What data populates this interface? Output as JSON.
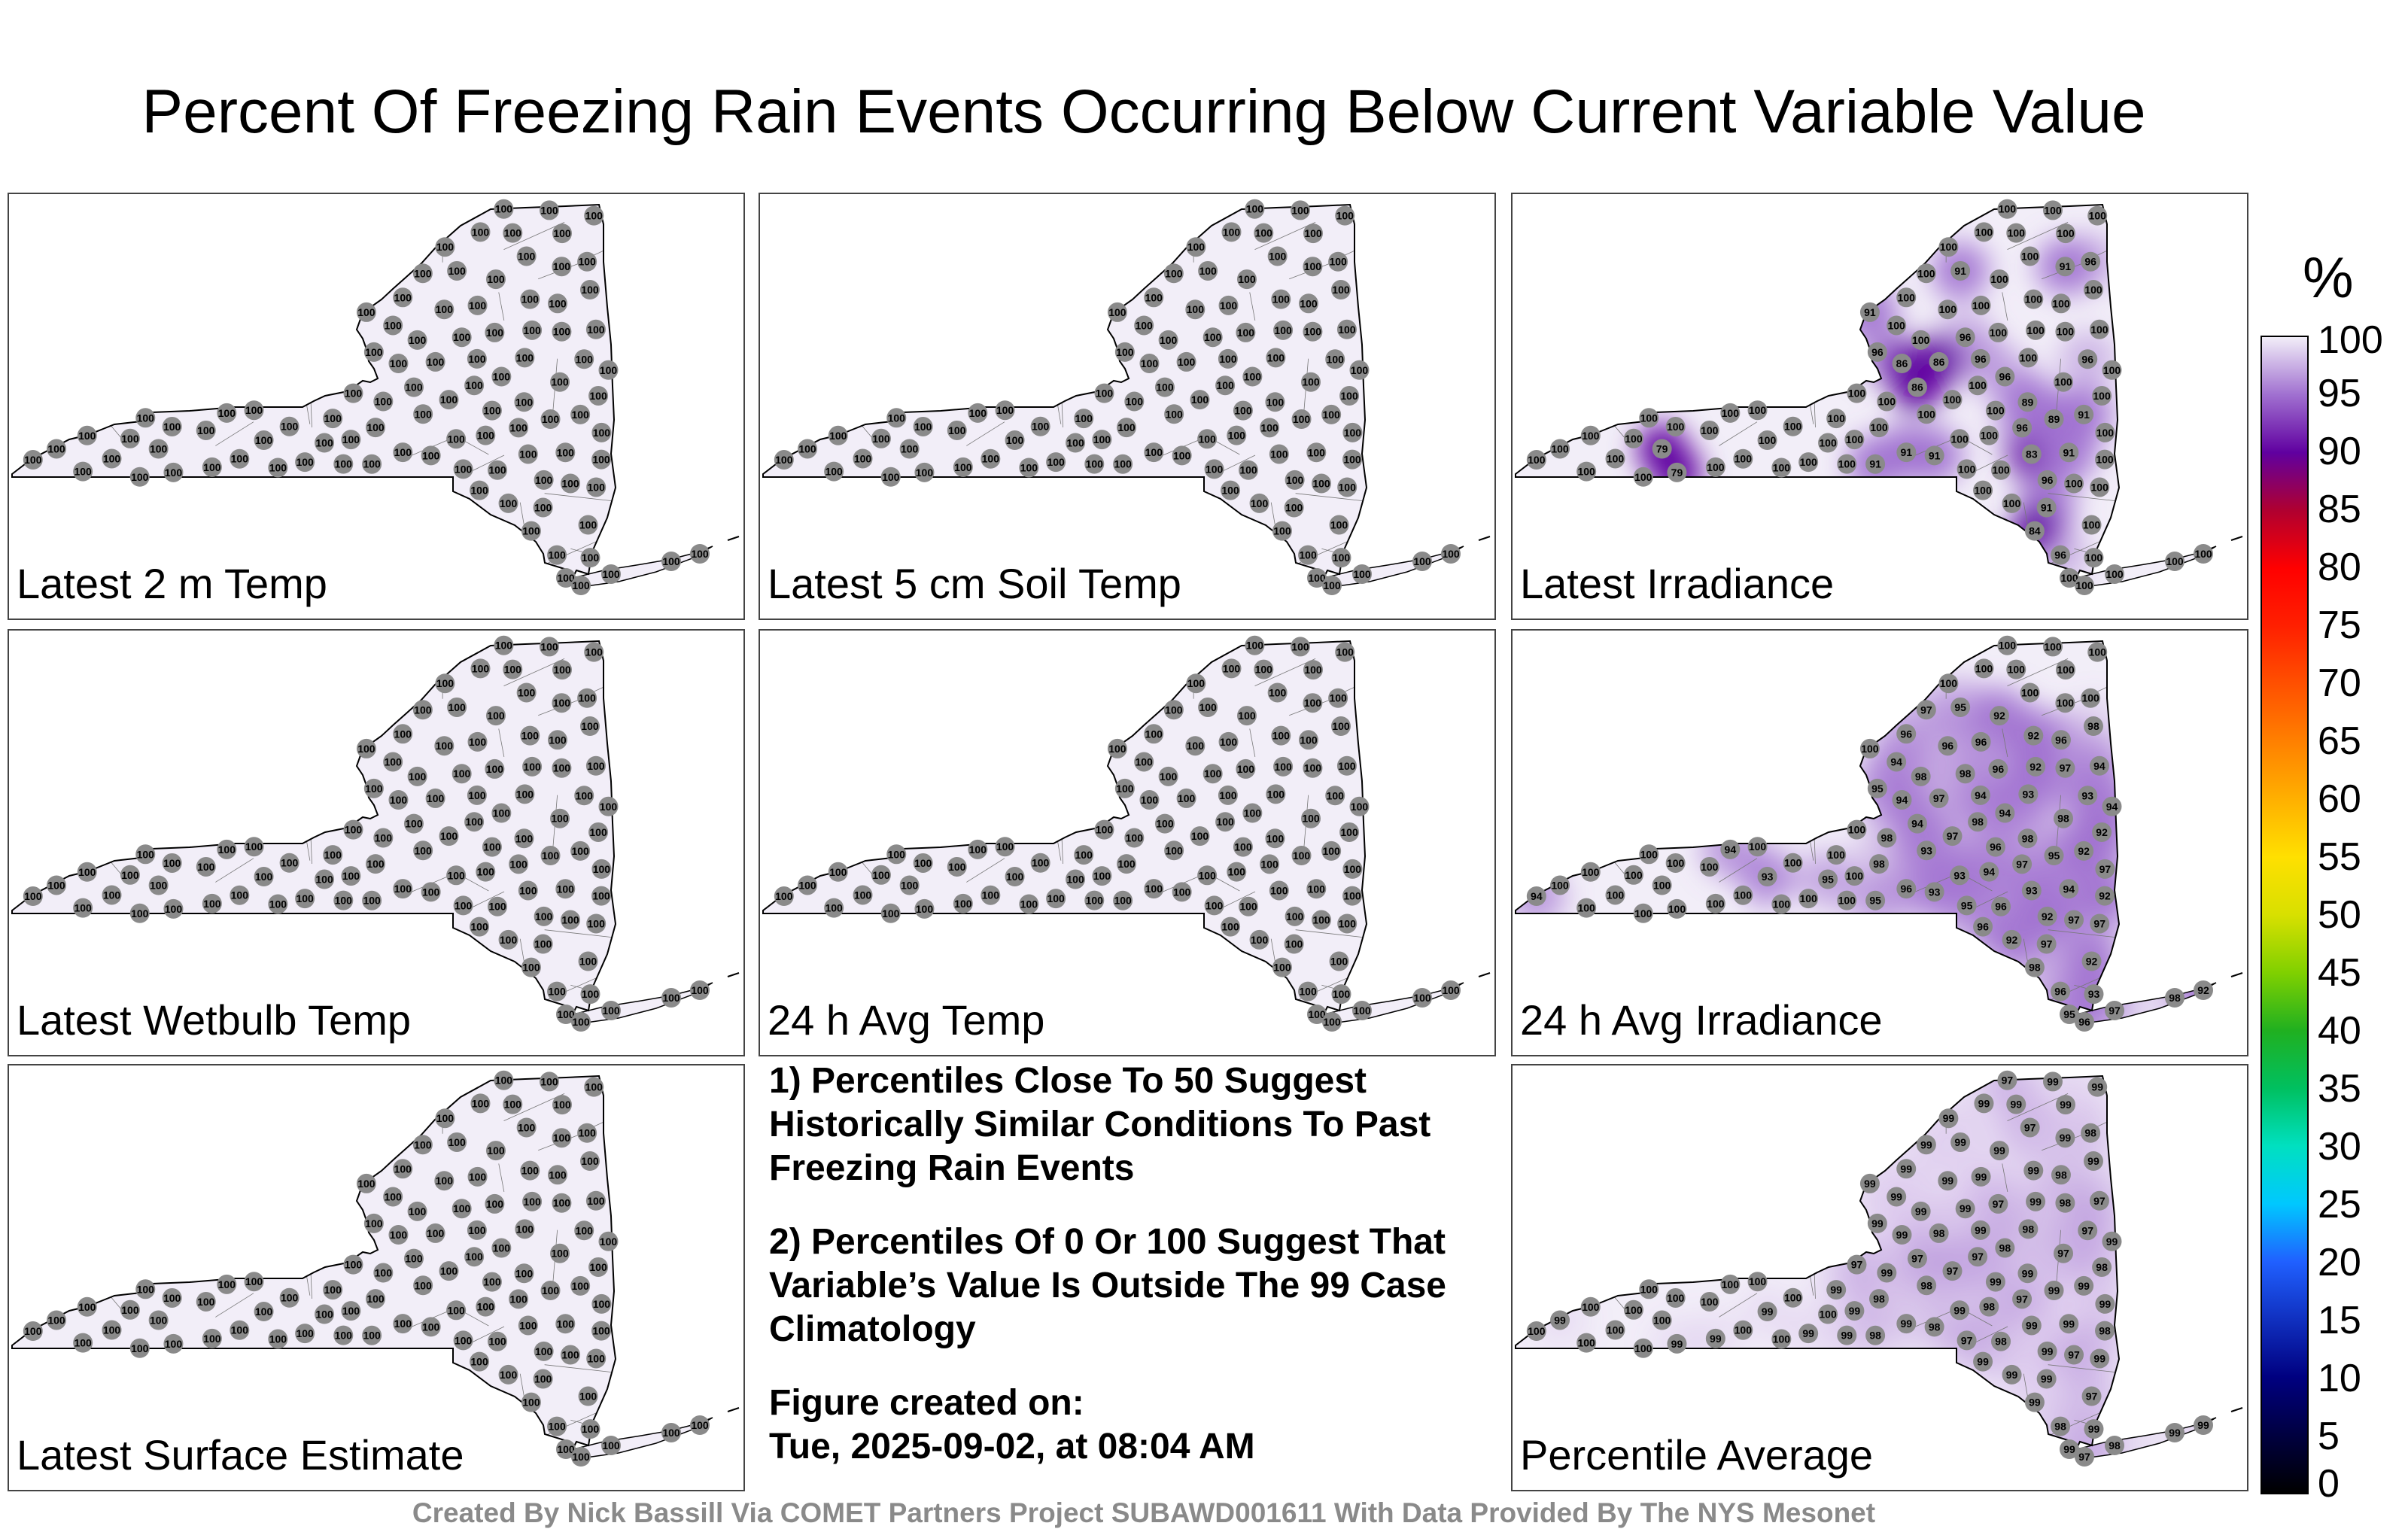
{
  "title": "Percent Of Freezing Rain Events Occurring Below Current Variable Value",
  "panels": [
    {
      "label": "Latest 2 m Temp",
      "variant": "uniform"
    },
    {
      "label": "Latest 5 cm Soil Temp",
      "variant": "uniform"
    },
    {
      "label": "Latest Irradiance",
      "variant": "irradiance"
    },
    {
      "label": "Latest Wetbulb Temp",
      "variant": "uniform"
    },
    {
      "label": "24 h Avg Temp",
      "variant": "uniform"
    },
    {
      "label": "24 h Avg Irradiance",
      "variant": "avgirr"
    },
    {
      "label": "Latest Surface Estimate",
      "variant": "uniform"
    },
    {
      "label": "Percentile Average",
      "variant": "average"
    }
  ],
  "notes": {
    "note1": "1) Percentiles Close To 50 Suggest Historically Similar Conditions To Past Freezing Rain Events",
    "note2": "2) Percentiles Of 0 Or 100 Suggest That Variable’s Value Is Outside The 99 Case Climatology",
    "created_label": "Figure created on:",
    "created_value": "Tue, 2025-09-02, at 08:04 AM"
  },
  "colorbar": {
    "unit": "%",
    "ticks": [
      "100",
      "95",
      "90",
      "85",
      "80",
      "75",
      "70",
      "65",
      "60",
      "55",
      "50",
      "45",
      "40",
      "35",
      "30",
      "25",
      "20",
      "15",
      "10",
      "5",
      "0"
    ],
    "colors": {
      "0": "#000000",
      "10": "#000080",
      "20": "#2060ff",
      "25": "#00c8ff",
      "30": "#00e0c0",
      "35": "#00c060",
      "40": "#20b020",
      "45": "#80d000",
      "50": "#d8e000",
      "55": "#ffe000",
      "60": "#ffb000",
      "65": "#ff8000",
      "70": "#ff5000",
      "75": "#ff2000",
      "80": "#ff0000",
      "85": "#b00030",
      "90": "#6000a0",
      "95": "#a070d0",
      "100": "#f2eef8"
    }
  },
  "station_colors": {
    "dot": "#8a8a8a",
    "fill": "#efeaf5",
    "outline": "#000000"
  },
  "footer": "Created By Nick Bassill Via COMET Partners Project SUBAWD001611 With Data Provided By The NYS Mesonet"
}
